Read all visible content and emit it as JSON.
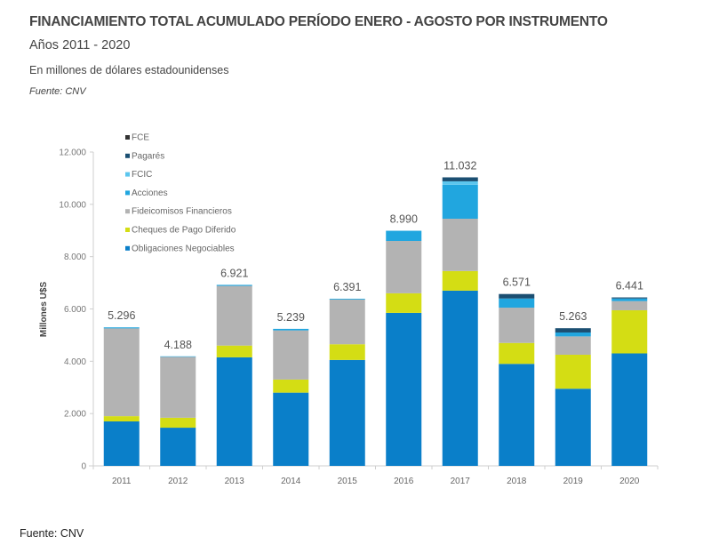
{
  "header": {
    "title": "FINANCIAMIENTO TOTAL ACUMULADO PERÍODO ENERO - AGOSTO POR INSTRUMENTO",
    "subtitle": "Años 2011 - 2020",
    "units": "En millones de dólares estadounidenses",
    "source_italic": "Fuente: CNV"
  },
  "footer": {
    "source": "Fuente: CNV"
  },
  "chart_data": {
    "type": "bar",
    "stacked": true,
    "title": "FINANCIAMIENTO TOTAL ACUMULADO PERÍODO ENERO - AGOSTO POR INSTRUMENTO",
    "xlabel": "",
    "ylabel": "Millones U$S",
    "ylim": [
      0,
      12000
    ],
    "yticks": [
      0,
      2000,
      4000,
      6000,
      8000,
      10000,
      12000
    ],
    "ytick_labels": [
      "0",
      "2.000",
      "4.000",
      "6.000",
      "8.000",
      "10.000",
      "12.000"
    ],
    "grid": false,
    "legend_position": "top-left",
    "categories": [
      "2011",
      "2012",
      "2013",
      "2014",
      "2015",
      "2016",
      "2017",
      "2018",
      "2019",
      "2020"
    ],
    "totals": [
      5296,
      4188,
      6921,
      5239,
      6391,
      8990,
      11032,
      6571,
      5263,
      6441
    ],
    "total_labels": [
      "5.296",
      "4.188",
      "6.921",
      "5.239",
      "6.391",
      "8.990",
      "11.032",
      "6.571",
      "5.263",
      "6.441"
    ],
    "series": [
      {
        "name": "Obligaciones Negociables",
        "color": "#0a7fc9",
        "values": [
          1700,
          1460,
          4150,
          2800,
          4050,
          5850,
          6700,
          3900,
          2950,
          4300
        ]
      },
      {
        "name": "Cheques de Pago Diferido",
        "color": "#d4dd14",
        "values": [
          200,
          380,
          450,
          500,
          600,
          750,
          750,
          800,
          1300,
          1650
        ]
      },
      {
        "name": "Fideicomisos Financieros",
        "color": "#b3b3b3",
        "values": [
          3356,
          2328,
          2281,
          1879,
          1711,
          2000,
          2000,
          1350,
          700,
          350
        ]
      },
      {
        "name": "Acciones",
        "color": "#21a6df",
        "values": [
          40,
          20,
          40,
          60,
          30,
          390,
          1300,
          350,
          150,
          100
        ]
      },
      {
        "name": "FCIC",
        "color": "#5cc6ee",
        "values": [
          0,
          0,
          0,
          0,
          0,
          0,
          130,
          0,
          0,
          0
        ]
      },
      {
        "name": "Pagarés",
        "color": "#1b4f72",
        "values": [
          0,
          0,
          0,
          0,
          0,
          0,
          152,
          171,
          163,
          41
        ]
      },
      {
        "name": "FCE",
        "color": "#333333",
        "values": [
          0,
          0,
          0,
          0,
          0,
          0,
          0,
          0,
          0,
          0
        ]
      }
    ],
    "legend_order": [
      "FCE",
      "Pagarés",
      "FCIC",
      "Acciones",
      "Fideicomisos Financieros",
      "Cheques de Pago Diferido",
      "Obligaciones Negociables"
    ]
  }
}
